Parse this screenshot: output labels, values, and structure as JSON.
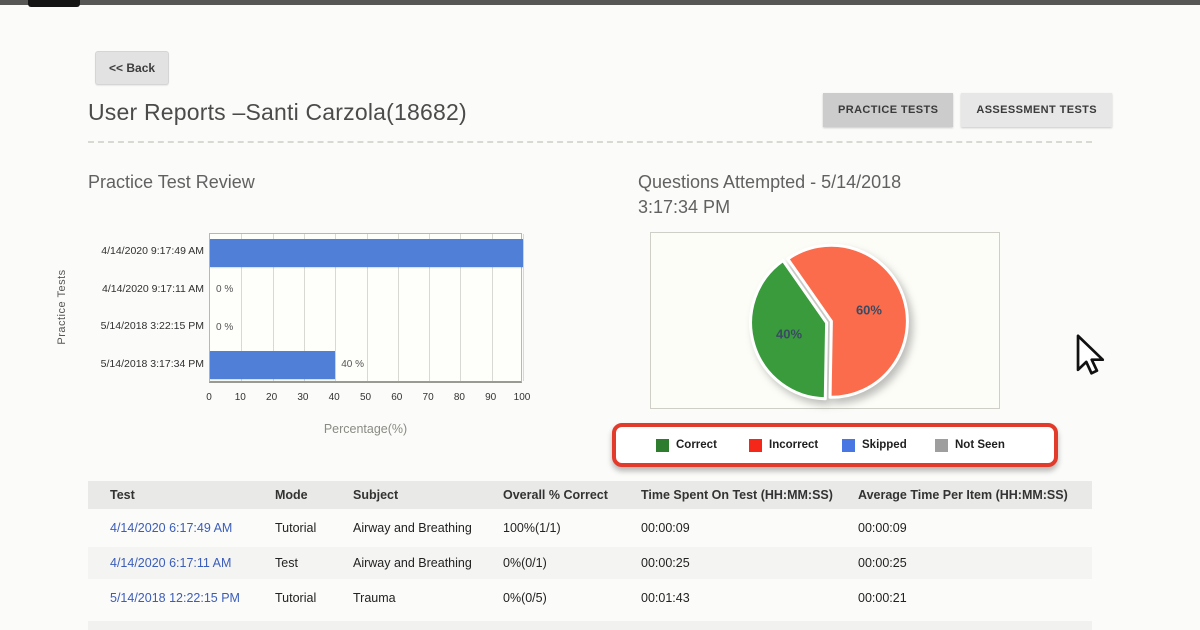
{
  "top": {
    "back_label": "<< Back",
    "title": "User Reports –Santi Carzola(18682)",
    "tabs": [
      {
        "label": "PRACTICE TESTS",
        "active": true
      },
      {
        "label": "ASSESSMENT TESTS",
        "active": false
      }
    ]
  },
  "sections": {
    "left_title": "Practice Test Review",
    "right_title": "Questions Attempted - 5/14/2018 3:17:34 PM"
  },
  "chart_data": [
    {
      "type": "bar",
      "orientation": "horizontal",
      "title": "Practice Test Review",
      "categories": [
        "4/14/2020 9:17:49 AM",
        "4/14/2020 9:17:11 AM",
        "5/14/2018 3:22:15 PM",
        "5/14/2018 3:17:34 PM"
      ],
      "values": [
        100,
        0,
        0,
        40
      ],
      "bar_labels": [
        "",
        "0 %",
        "0 %",
        "40 %"
      ],
      "xlabel": "Percentage(%)",
      "ylabel": "Practice Tests",
      "xlim": [
        0,
        100
      ],
      "xticks": [
        0,
        10,
        20,
        30,
        40,
        50,
        60,
        70,
        80,
        90,
        100
      ],
      "grid": true,
      "bar_color": "#4f7fd6",
      "legend_position": "none"
    },
    {
      "type": "pie",
      "title": "Questions Attempted - 5/14/2018 3:17:34 PM",
      "start_angle_deg": 181,
      "slices": [
        {
          "label": "Correct",
          "value": 40,
          "display": "40%",
          "color": "#3a9b3d"
        },
        {
          "label": "Incorrect",
          "value": 60,
          "display": "60%",
          "color": "#fa6c4c"
        }
      ],
      "legend_position": "bottom"
    }
  ],
  "legend": {
    "items": [
      {
        "label": "Correct",
        "color": "#2e7d2e"
      },
      {
        "label": "Incorrect",
        "color": "#f42718"
      },
      {
        "label": "Skipped",
        "color": "#4877e3"
      },
      {
        "label": "Not Seen",
        "color": "#9e9e9e"
      }
    ],
    "highlight_color": "#e23b2c"
  },
  "table": {
    "headers": [
      "Test",
      "Mode",
      "Subject",
      "Overall % Correct",
      "Time Spent On Test (HH:MM:SS)",
      "Average Time Per Item (HH:MM:SS)"
    ],
    "rows": [
      [
        "4/14/2020 6:17:49 AM",
        "Tutorial",
        "Airway and Breathing",
        "100%(1/1)",
        "00:00:09",
        "00:00:09"
      ],
      [
        "4/14/2020 6:17:11 AM",
        "Test",
        "Airway and Breathing",
        "0%(0/1)",
        "00:00:25",
        "00:00:25"
      ],
      [
        "5/14/2018 12:22:15 PM",
        "Tutorial",
        "Trauma",
        "0%(0/5)",
        "00:01:43",
        "00:00:21"
      ]
    ],
    "link_color": "#3b5db8"
  }
}
